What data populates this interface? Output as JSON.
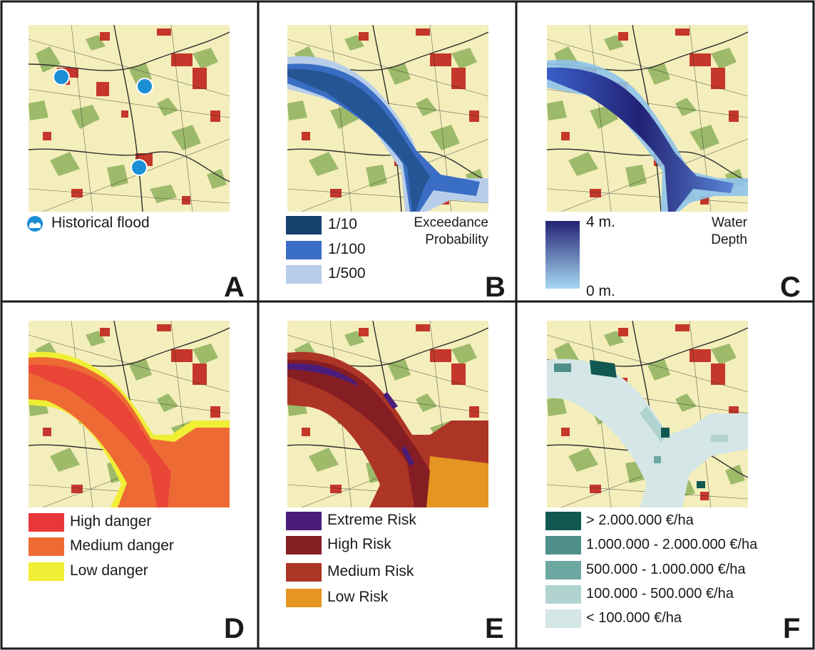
{
  "panels": {
    "A": {
      "letter": "A",
      "legend": [
        {
          "label": "Historical flood",
          "icon": "wave-circle-icon",
          "color": "#1a8fd6"
        }
      ]
    },
    "B": {
      "letter": "B",
      "title_lines": [
        "Exceedance",
        "Probability"
      ],
      "legend": [
        {
          "label": "1/10",
          "color": "#16416f"
        },
        {
          "label": "1/100",
          "color": "#3a6ec4"
        },
        {
          "label": "1/500",
          "color": "#b7cde9"
        }
      ]
    },
    "C": {
      "letter": "C",
      "title_lines": [
        "Water",
        "Depth"
      ],
      "max_label": "4 m.",
      "min_label": "0 m.",
      "gradient": {
        "top": "#222275",
        "bottom": "#a7d8f2"
      }
    },
    "D": {
      "letter": "D",
      "legend": [
        {
          "label": "High danger",
          "color": "#e8373b"
        },
        {
          "label": "Medium danger",
          "color": "#ee6a35"
        },
        {
          "label": "Low danger",
          "color": "#f0ee35"
        }
      ]
    },
    "E": {
      "letter": "E",
      "legend": [
        {
          "label": "Extreme Risk",
          "color": "#4a1d7a"
        },
        {
          "label": "High Risk",
          "color": "#851e22"
        },
        {
          "label": "Medium Risk",
          "color": "#ad3526"
        },
        {
          "label": "Low Risk",
          "color": "#e49522"
        }
      ]
    },
    "F": {
      "letter": "F",
      "legend": [
        {
          "label": "> 2.000.000 €/ha",
          "color": "#115852"
        },
        {
          "label": "1.000.000 - 2.000.000 €/ha",
          "color": "#4f8f8b"
        },
        {
          "label": "500.000 - 1.000.000 €/ha",
          "color": "#6ea7a1"
        },
        {
          "label": "100.000 - 500.000 €/ha",
          "color": "#b1d3d0"
        },
        {
          "label": "< 100.000 €/ha",
          "color": "#d4e6e6"
        }
      ]
    }
  },
  "map_colors": {
    "background": "#f4eebc",
    "urban": "#c5372a",
    "vegetation": "#8fb25c",
    "roads": "#2e2e2e",
    "frame": "#1a1a1a"
  }
}
